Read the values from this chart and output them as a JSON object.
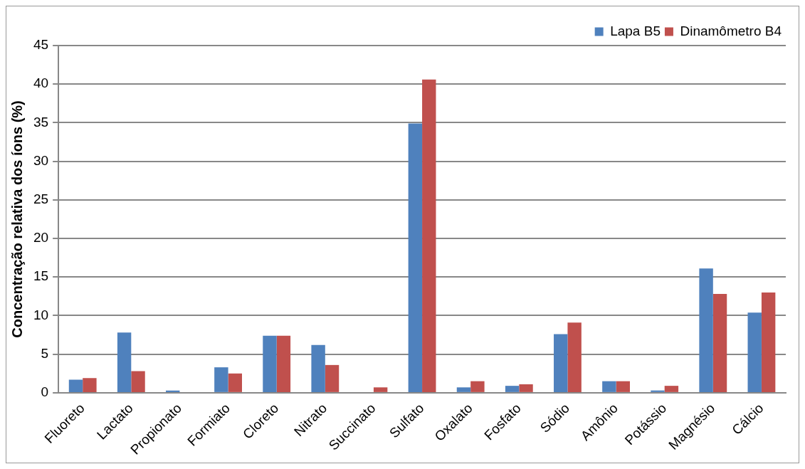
{
  "chart_data": {
    "type": "bar",
    "ylabel": "Concentração relativa dos íons (%)",
    "categories": [
      "Fluoreto",
      "Lactato",
      "Propionato",
      "Formiato",
      "Cloreto",
      "Nitrato",
      "Succinato",
      "Sulfato",
      "Oxalato",
      "Fosfato",
      "Sódio",
      "Amônio",
      "Potássio",
      "Magnésio",
      "Cálcio"
    ],
    "series": [
      {
        "name": "Lapa B5",
        "color": "#4f81bd",
        "values": [
          1.7,
          7.8,
          0.3,
          3.3,
          7.4,
          6.2,
          0,
          34.9,
          0.7,
          0.9,
          7.6,
          1.5,
          0.3,
          16.1,
          10.4
        ]
      },
      {
        "name": "Dinamômetro B4",
        "color": "#c0504d",
        "values": [
          1.9,
          2.8,
          0,
          2.5,
          7.4,
          3.6,
          0.7,
          40.6,
          1.5,
          1.1,
          9.1,
          1.5,
          0.9,
          12.8,
          13.0
        ]
      }
    ],
    "ylim": [
      0,
      45
    ],
    "yticks": [
      0,
      5,
      10,
      15,
      20,
      25,
      30,
      35,
      40,
      45
    ],
    "grid": "y",
    "legend": "top right"
  }
}
